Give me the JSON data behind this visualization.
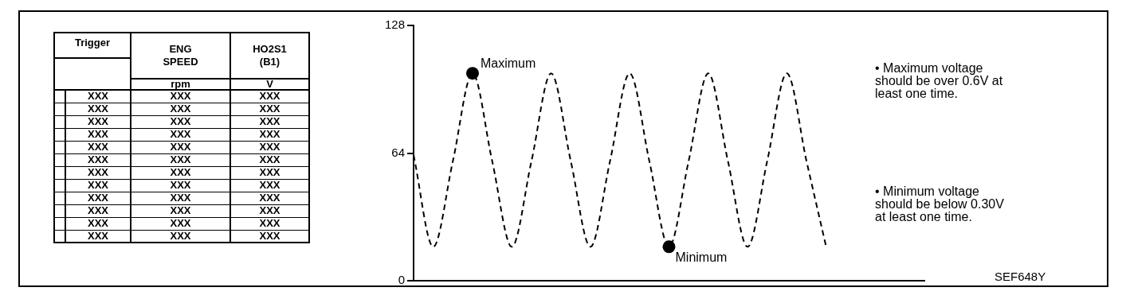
{
  "chart_data": [
    {
      "type": "other",
      "categories": [
        "Trigger",
        "ENG SPEED",
        "HO2S1 (B1)"
      ],
      "cell_labels": [
        [
          null,
          "rpm",
          "V"
        ],
        [
          "XXX",
          "XXX",
          "XXX"
        ],
        [
          "XXX",
          "XXX",
          "XXX"
        ],
        [
          "XXX",
          "XXX",
          "XXX"
        ],
        [
          "XXX",
          "XXX",
          "XXX"
        ],
        [
          "XXX",
          "XXX",
          "XXX"
        ],
        [
          "XXX",
          "XXX",
          "XXX"
        ],
        [
          "XXX",
          "XXX",
          "XXX"
        ],
        [
          "XXX",
          "XXX",
          "XXX"
        ],
        [
          "XXX",
          "XXX",
          "XXX"
        ],
        [
          "XXX",
          "XXX",
          "XXX"
        ],
        [
          "XXX",
          "XXX",
          "XXX"
        ],
        [
          "XXX",
          "XXX",
          "XXX"
        ]
      ]
    },
    {
      "type": "line",
      "categories": [
        null,
        null,
        null,
        null,
        null,
        null,
        null,
        null,
        null,
        null,
        null,
        null,
        null,
        null,
        null,
        null,
        null,
        null,
        null,
        null,
        null,
        null,
        null,
        null,
        null,
        null,
        null
      ],
      "series": [
        {
          "type": "line",
          "color": "#000000",
          "line_style": "dashed",
          "marker": "none",
          "values": [
            63,
            17,
            60,
            104,
            60,
            17,
            60,
            104,
            60,
            17,
            60,
            104,
            60,
            17,
            60,
            104,
            60,
            17,
            60,
            104,
            60,
            17,
            null,
            null,
            null,
            null,
            null
          ]
        },
        {
          "type": "scatter",
          "color": "#000000",
          "marker": "circle",
          "values": [
            null,
            null,
            null,
            104,
            null,
            null,
            null,
            null,
            null,
            null,
            null,
            null,
            null,
            17,
            null,
            null,
            null,
            null,
            null,
            null,
            null,
            null,
            null,
            null,
            null,
            null,
            null
          ]
        }
      ],
      "ylim": [
        0,
        128
      ],
      "yticks": [
        0,
        64,
        128
      ],
      "grid": false,
      "tick_labels": "y",
      "legend": false,
      "annotations": [
        "Maximum",
        "Minimum",
        "• Maximum voltage should be over 0.6V at least one time.",
        "• Minimum voltage should be below 0.30V at least one time.",
        "SEF648Y"
      ]
    }
  ]
}
